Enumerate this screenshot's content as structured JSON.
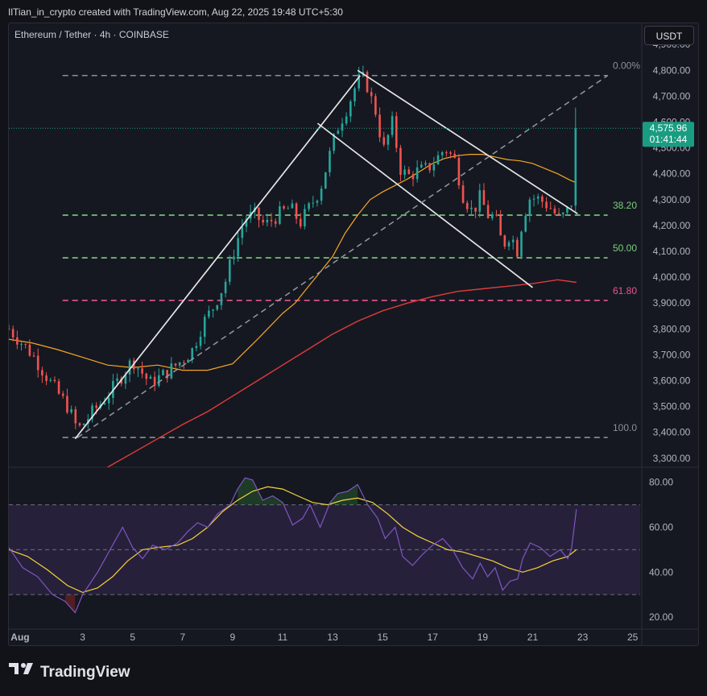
{
  "header": {
    "attribution": "IlTian_in_crypto created with TradingView.com, Aug 22, 2025 19:48 UTC+5:30"
  },
  "symbol": "Ethereum / Tether · 4h · COINBASE",
  "currency_button": "USDT",
  "footer": {
    "brand": "TradingView",
    "logo_icon": "tradingview-logo-icon"
  },
  "colors": {
    "up": "#26a69a",
    "down": "#ef5350",
    "ma_fast": "#f6a623",
    "ma_slow": "#e23b3b",
    "rsi_line": "#7e57c2",
    "rsi_ma": "#f5d33c",
    "fib_green": "#7ccd7c",
    "fib_pink": "#e8568c",
    "fib_gray": "#8c8f98",
    "last_price_bg": "#1a9c82"
  },
  "chart_data": [
    {
      "type": "candlestick",
      "title": "Ethereum / Tether · 4h · COINBASE",
      "ylim": [
        3265,
        4935
      ],
      "y_ticks": [
        3300,
        3400,
        3500,
        3600,
        3700,
        3800,
        3900,
        4000,
        4100,
        4200,
        4300,
        4400,
        4500,
        4600,
        4700,
        4800,
        4900
      ],
      "y_tick_labels": [
        "3,300.00",
        "3,400.00",
        "3,500.00",
        "3,600.00",
        "3,700.00",
        "3,800.00",
        "3,900.00",
        "4,000.00",
        "4,100.00",
        "4,200.00",
        "4,300.00",
        "4,400.00",
        "4,500.00",
        "4,600.00",
        "4,700.00",
        "4,800.00",
        "4,900.00"
      ],
      "x_range_days": [
        0.05,
        25.3
      ],
      "x_ticks": [
        {
          "day": 0.5,
          "label": "Aug"
        },
        {
          "day": 3,
          "label": "3"
        },
        {
          "day": 5,
          "label": "5"
        },
        {
          "day": 7,
          "label": "7"
        },
        {
          "day": 9,
          "label": "9"
        },
        {
          "day": 11,
          "label": "11"
        },
        {
          "day": 13,
          "label": "13"
        },
        {
          "day": 15,
          "label": "15"
        },
        {
          "day": 17,
          "label": "17"
        },
        {
          "day": 19,
          "label": "19"
        },
        {
          "day": 21,
          "label": "21"
        },
        {
          "day": 23,
          "label": "23"
        },
        {
          "day": 25,
          "label": "25"
        }
      ],
      "close_anchors": [
        [
          0.05,
          3800
        ],
        [
          1.0,
          3700
        ],
        [
          1.8,
          3580
        ],
        [
          2.4,
          3500
        ],
        [
          2.8,
          3410
        ],
        [
          3.0,
          3430
        ],
        [
          3.5,
          3490
        ],
        [
          4.0,
          3540
        ],
        [
          4.5,
          3610
        ],
        [
          5.0,
          3680
        ],
        [
          5.3,
          3640
        ],
        [
          5.7,
          3590
        ],
        [
          6.2,
          3620
        ],
        [
          6.6,
          3650
        ],
        [
          7.0,
          3680
        ],
        [
          7.4,
          3720
        ],
        [
          7.8,
          3820
        ],
        [
          8.2,
          3880
        ],
        [
          8.7,
          3980
        ],
        [
          9.1,
          4120
        ],
        [
          9.5,
          4230
        ],
        [
          9.9,
          4240
        ],
        [
          10.3,
          4200
        ],
        [
          10.8,
          4240
        ],
        [
          11.3,
          4270
        ],
        [
          11.7,
          4210
        ],
        [
          12.2,
          4290
        ],
        [
          12.5,
          4340
        ],
        [
          12.9,
          4480
        ],
        [
          13.2,
          4580
        ],
        [
          13.6,
          4660
        ],
        [
          14.0,
          4760
        ],
        [
          14.3,
          4770
        ],
        [
          14.5,
          4700
        ],
        [
          14.8,
          4620
        ],
        [
          15.0,
          4480
        ],
        [
          15.4,
          4600
        ],
        [
          15.7,
          4420
        ],
        [
          16.0,
          4390
        ],
        [
          16.4,
          4410
        ],
        [
          16.8,
          4420
        ],
        [
          17.1,
          4450
        ],
        [
          17.5,
          4500
        ],
        [
          17.9,
          4450
        ],
        [
          18.2,
          4320
        ],
        [
          18.6,
          4250
        ],
        [
          18.9,
          4310
        ],
        [
          19.2,
          4240
        ],
        [
          19.5,
          4230
        ],
        [
          19.8,
          4120
        ],
        [
          20.1,
          4170
        ],
        [
          20.4,
          4100
        ],
        [
          20.6,
          4230
        ],
        [
          20.9,
          4310
        ],
        [
          21.3,
          4300
        ],
        [
          21.7,
          4270
        ],
        [
          22.1,
          4220
        ],
        [
          22.4,
          4260
        ],
        [
          22.5,
          4300
        ],
        [
          22.6,
          4280
        ],
        [
          22.75,
          4576
        ]
      ],
      "moving_average_fast": [
        [
          0.05,
          3760
        ],
        [
          1.0,
          3745
        ],
        [
          2.0,
          3720
        ],
        [
          3.0,
          3690
        ],
        [
          4.0,
          3660
        ],
        [
          5.0,
          3650
        ],
        [
          6.0,
          3660
        ],
        [
          7.0,
          3640
        ],
        [
          8.0,
          3640
        ],
        [
          9.0,
          3665
        ],
        [
          10.0,
          3760
        ],
        [
          11.0,
          3860
        ],
        [
          11.5,
          3900
        ],
        [
          12.0,
          3960
        ],
        [
          12.5,
          4020
        ],
        [
          13.0,
          4080
        ],
        [
          13.5,
          4170
        ],
        [
          14.0,
          4240
        ],
        [
          14.5,
          4300
        ],
        [
          15.0,
          4330
        ],
        [
          15.5,
          4355
        ],
        [
          16.0,
          4380
        ],
        [
          16.5,
          4410
        ],
        [
          17.0,
          4440
        ],
        [
          17.5,
          4460
        ],
        [
          18.0,
          4470
        ],
        [
          18.5,
          4475
        ],
        [
          19.0,
          4475
        ],
        [
          19.5,
          4465
        ],
        [
          20.0,
          4455
        ],
        [
          20.5,
          4450
        ],
        [
          21.0,
          4440
        ],
        [
          21.5,
          4420
        ],
        [
          22.0,
          4400
        ],
        [
          22.5,
          4375
        ],
        [
          22.75,
          4365
        ]
      ],
      "moving_average_slow": [
        [
          4.0,
          3265
        ],
        [
          5.0,
          3320
        ],
        [
          6.0,
          3375
        ],
        [
          7.0,
          3430
        ],
        [
          8.0,
          3480
        ],
        [
          9.0,
          3540
        ],
        [
          10.0,
          3600
        ],
        [
          11.0,
          3660
        ],
        [
          12.0,
          3720
        ],
        [
          13.0,
          3780
        ],
        [
          14.0,
          3830
        ],
        [
          15.0,
          3870
        ],
        [
          16.0,
          3900
        ],
        [
          17.0,
          3925
        ],
        [
          18.0,
          3945
        ],
        [
          19.0,
          3955
        ],
        [
          20.0,
          3965
        ],
        [
          21.0,
          3975
        ],
        [
          22.0,
          3990
        ],
        [
          22.75,
          3980
        ]
      ],
      "last_price": {
        "value": 4575.96,
        "label": "4,575.96",
        "countdown": "01:41:44"
      },
      "fibonacci": [
        {
          "label": "0.00%",
          "price": 4780
        },
        {
          "label": "38.20",
          "price": 4240
        },
        {
          "label": "50.00",
          "price": 4075
        },
        {
          "label": "61.80",
          "price": 3910
        },
        {
          "label": "100.0",
          "price": 3380
        }
      ],
      "trendlines": [
        {
          "from": [
            2.7,
            3375
          ],
          "to": [
            14.1,
            4780
          ]
        },
        {
          "from": [
            14.0,
            4800
          ],
          "to": [
            22.8,
            4245
          ]
        },
        {
          "from": [
            12.4,
            4595
          ],
          "to": [
            21.0,
            3960
          ]
        },
        {
          "from": [
            2.8,
            3380
          ],
          "to": [
            24.0,
            4780
          ],
          "dashed": true
        }
      ]
    },
    {
      "type": "line",
      "title": "RSI",
      "ylim": [
        15,
        86
      ],
      "y_ticks": [
        20,
        40,
        60,
        80
      ],
      "y_tick_labels": [
        "20.00",
        "40.00",
        "60.00",
        "80.00"
      ],
      "band": [
        30,
        70
      ],
      "midline": 50,
      "series": [
        {
          "values": [
            [
              0.05,
              51
            ],
            [
              0.6,
              42
            ],
            [
              1.2,
              38
            ],
            [
              1.8,
              30
            ],
            [
              2.3,
              27
            ],
            [
              2.7,
              22
            ],
            [
              3.0,
              30
            ],
            [
              3.6,
              40
            ],
            [
              4.0,
              48
            ],
            [
              4.6,
              60
            ],
            [
              5.0,
              51
            ],
            [
              5.4,
              46
            ],
            [
              5.8,
              52
            ],
            [
              6.3,
              50
            ],
            [
              6.8,
              53
            ],
            [
              7.2,
              58
            ],
            [
              7.6,
              62
            ],
            [
              8.0,
              60
            ],
            [
              8.4,
              66
            ],
            [
              8.9,
              70
            ],
            [
              9.2,
              77
            ],
            [
              9.5,
              82
            ],
            [
              9.8,
              81
            ],
            [
              10.2,
              72
            ],
            [
              10.6,
              74
            ],
            [
              11.0,
              71
            ],
            [
              11.4,
              61
            ],
            [
              11.8,
              64
            ],
            [
              12.1,
              70
            ],
            [
              12.5,
              60
            ],
            [
              12.9,
              71
            ],
            [
              13.2,
              75
            ],
            [
              13.6,
              76
            ],
            [
              14.0,
              79
            ],
            [
              14.4,
              70
            ],
            [
              14.8,
              64
            ],
            [
              15.1,
              55
            ],
            [
              15.5,
              60
            ],
            [
              15.8,
              47
            ],
            [
              16.2,
              43
            ],
            [
              16.6,
              48
            ],
            [
              17.0,
              52
            ],
            [
              17.4,
              55
            ],
            [
              17.8,
              50
            ],
            [
              18.2,
              42
            ],
            [
              18.6,
              37
            ],
            [
              18.9,
              44
            ],
            [
              19.2,
              38
            ],
            [
              19.5,
              42
            ],
            [
              19.8,
              32
            ],
            [
              20.1,
              36
            ],
            [
              20.4,
              37
            ],
            [
              20.6,
              46
            ],
            [
              20.9,
              53
            ],
            [
              21.3,
              51
            ],
            [
              21.7,
              47
            ],
            [
              22.1,
              50
            ],
            [
              22.4,
              46
            ],
            [
              22.55,
              50
            ],
            [
              22.75,
              68
            ]
          ]
        },
        {
          "values": [
            [
              0.05,
              50
            ],
            [
              0.8,
              47
            ],
            [
              1.6,
              41
            ],
            [
              2.4,
              34
            ],
            [
              3.0,
              31
            ],
            [
              3.6,
              33
            ],
            [
              4.2,
              38
            ],
            [
              4.8,
              45
            ],
            [
              5.4,
              50
            ],
            [
              6.0,
              51
            ],
            [
              6.8,
              52
            ],
            [
              7.4,
              55
            ],
            [
              8.0,
              60
            ],
            [
              8.6,
              67
            ],
            [
              9.2,
              72
            ],
            [
              9.8,
              76
            ],
            [
              10.4,
              78
            ],
            [
              11.0,
              77
            ],
            [
              11.6,
              74
            ],
            [
              12.2,
              71
            ],
            [
              12.8,
              70
            ],
            [
              13.4,
              72
            ],
            [
              14.0,
              73
            ],
            [
              14.6,
              71
            ],
            [
              15.2,
              66
            ],
            [
              15.8,
              60
            ],
            [
              16.4,
              56
            ],
            [
              17.0,
              53
            ],
            [
              17.6,
              50
            ],
            [
              18.2,
              49
            ],
            [
              18.8,
              47
            ],
            [
              19.4,
              45
            ],
            [
              20.0,
              42
            ],
            [
              20.6,
              40
            ],
            [
              21.2,
              42
            ],
            [
              21.8,
              45
            ],
            [
              22.4,
              47
            ],
            [
              22.75,
              50
            ]
          ]
        }
      ]
    }
  ]
}
